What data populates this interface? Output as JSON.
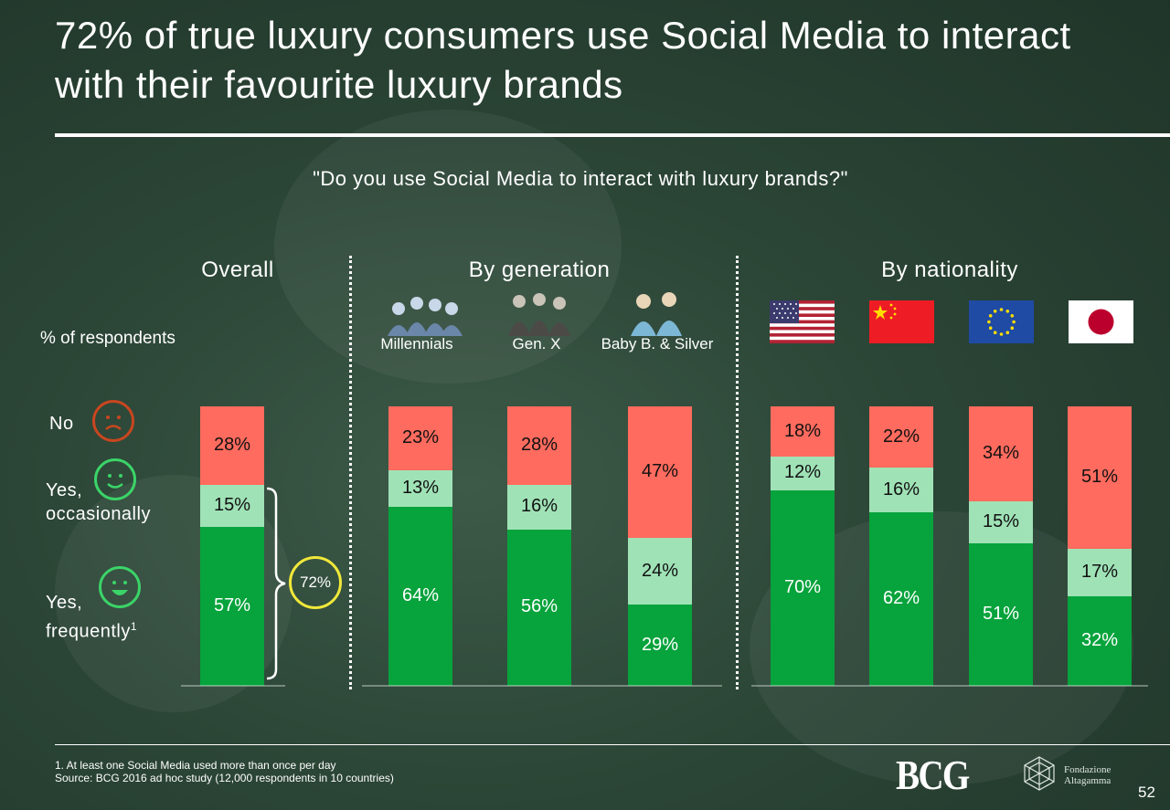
{
  "title": "72% of true luxury consumers use Social Media to interact with their favourite luxury brands",
  "question": "\"Do you use Social Media to interact with luxury brands?\"",
  "sections": {
    "overall": "Overall",
    "generation": "By generation",
    "nationality": "By nationality"
  },
  "ylabel": "% of respondents",
  "categories": {
    "no": "No",
    "occasionally_line1": "Yes,",
    "occasionally_line2": "occasionally",
    "frequently_line1": "Yes,",
    "frequently_line2": "frequently",
    "frequently_sup": "1"
  },
  "generation_labels": [
    "Millennials",
    "Gen. X",
    "Baby B. & Silver"
  ],
  "flags": [
    "us-flag",
    "china-flag",
    "eu-flag",
    "japan-flag"
  ],
  "total_callout": "72%",
  "colors": {
    "no": "#ff6b5e",
    "occasionally": "#9fe2b6",
    "frequently": "#07a33c",
    "smiley_no": "#c8461f",
    "smiley_yes": "#3bd468",
    "callout_circle": "#f0e83a"
  },
  "chart_data": {
    "type": "bar",
    "stacked": true,
    "unit": "%",
    "series_order": [
      "Yes, frequently",
      "Yes, occasionally",
      "No"
    ],
    "groups": [
      {
        "group": "Overall",
        "bars": [
          {
            "category": "Overall",
            "frequently": 57,
            "occasionally": 15,
            "no": 28
          }
        ]
      },
      {
        "group": "By generation",
        "bars": [
          {
            "category": "Millennials",
            "frequently": 64,
            "occasionally": 13,
            "no": 23
          },
          {
            "category": "Gen. X",
            "frequently": 56,
            "occasionally": 16,
            "no": 28
          },
          {
            "category": "Baby B. & Silver",
            "frequently": 29,
            "occasionally": 24,
            "no": 47
          }
        ]
      },
      {
        "group": "By nationality",
        "bars": [
          {
            "category": "US",
            "frequently": 70,
            "occasionally": 12,
            "no": 18
          },
          {
            "category": "China",
            "frequently": 62,
            "occasionally": 16,
            "no": 22
          },
          {
            "category": "EU",
            "frequently": 51,
            "occasionally": 15,
            "no": 34
          },
          {
            "category": "Japan",
            "frequently": 32,
            "occasionally": 17,
            "no": 51
          }
        ]
      }
    ],
    "ylim": [
      0,
      100
    ],
    "ylabel": "% of respondents"
  },
  "footnote": {
    "line1": "1. At least one Social Media used more than once per day",
    "line2": "Source: BCG 2016 ad hoc study (12,000 respondents in 10 countries)"
  },
  "logos": {
    "bcg": "BCG",
    "fondazione_line1": "Fondazione",
    "fondazione_line2": "Altagamma"
  },
  "page_number": "52"
}
